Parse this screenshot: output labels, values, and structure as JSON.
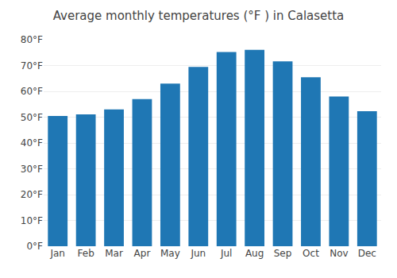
{
  "chart_data": {
    "type": "bar",
    "title": "Average monthly temperatures (°F ) in Calasetta",
    "categories": [
      "Jan",
      "Feb",
      "Mar",
      "Apr",
      "May",
      "Jun",
      "Jul",
      "Aug",
      "Sep",
      "Oct",
      "Nov",
      "Dec"
    ],
    "values": [
      50.5,
      51.1,
      53.0,
      57.0,
      63.0,
      69.5,
      75.2,
      76.1,
      71.6,
      65.5,
      58.0,
      52.3
    ],
    "ylim": [
      0,
      80
    ],
    "yticks": [
      {
        "value": 0,
        "label": "0°F"
      },
      {
        "value": 10,
        "label": "10°F"
      },
      {
        "value": 20,
        "label": "20°F"
      },
      {
        "value": 30,
        "label": "30°F"
      },
      {
        "value": 40,
        "label": "40°F"
      },
      {
        "value": 50,
        "label": "50°F"
      },
      {
        "value": 60,
        "label": "60°F"
      },
      {
        "value": 70,
        "label": "70°F"
      },
      {
        "value": 80,
        "label": "80°F"
      }
    ],
    "grid": true
  }
}
